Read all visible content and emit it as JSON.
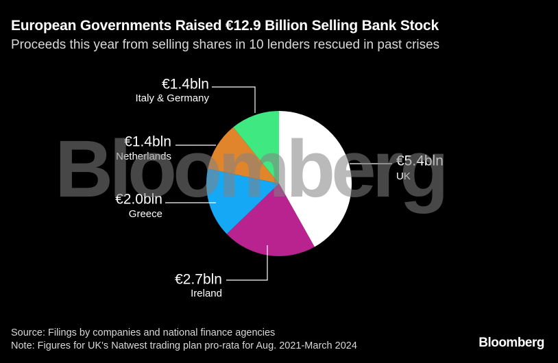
{
  "header": {
    "title": "European Governments Raised €12.9 Billion Selling Bank Stock",
    "subtitle": "Proceeds this year from selling shares in 10 lenders rescued in past crises"
  },
  "watermark": "Bloomberg",
  "footer": {
    "source": "Source: Filings by companies and national finance agencies",
    "note": "Note: Figures for UK's Natwest trading plan pro-rata for Aug. 2021-March 2024",
    "brand": "Bloomberg"
  },
  "chart_data": {
    "type": "pie",
    "title": "European Governments Raised €12.9 Billion Selling Bank Stock",
    "subtitle": "Proceeds this year from selling shares in 10 lenders rescued in past crises",
    "unit": "€ billion",
    "slices": [
      {
        "name": "UK",
        "value": 5.4,
        "label": "€5.4bln",
        "color": "#ffffff"
      },
      {
        "name": "Ireland",
        "value": 2.7,
        "label": "€2.7bln",
        "color": "#b8238f"
      },
      {
        "name": "Greece",
        "value": 2.0,
        "label": "€2.0bln",
        "color": "#14a8f5"
      },
      {
        "name": "Netherlands",
        "value": 1.4,
        "label": "€1.4bln",
        "color": "#e0852b"
      },
      {
        "name": "Italy & Germany",
        "value": 1.4,
        "label": "€1.4bln",
        "color": "#40e882"
      }
    ]
  }
}
